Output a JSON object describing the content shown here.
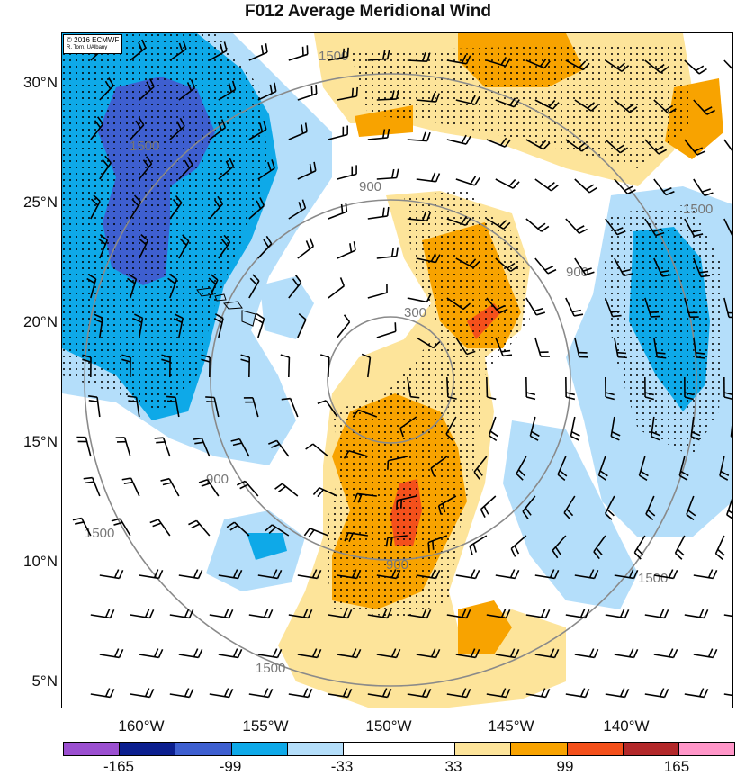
{
  "title": "F012 Average Meridional Wind",
  "credit": {
    "line1": "© 2016 ECMWF",
    "line2": "R. Torn, UAlbany"
  },
  "lat_labels": [
    "30°N",
    "25°N",
    "20°N",
    "15°N",
    "10°N",
    "5°N"
  ],
  "lon_labels": [
    "160°W",
    "155°W",
    "150°W",
    "145°W",
    "140°W"
  ],
  "contour_labels": [
    "300",
    "900",
    "1500"
  ],
  "colorbar": {
    "colors": [
      "#9b4fd0",
      "#0c1f8f",
      "#3e5fd0",
      "#0ea9e8",
      "#b4defa",
      "#ffffff",
      "#ffffff",
      "#fde49a",
      "#f8a300",
      "#f4501b",
      "#b3282a",
      "#ff96c8"
    ],
    "labels": [
      "-165",
      "-99",
      "-33",
      "33",
      "99",
      "165"
    ]
  }
}
